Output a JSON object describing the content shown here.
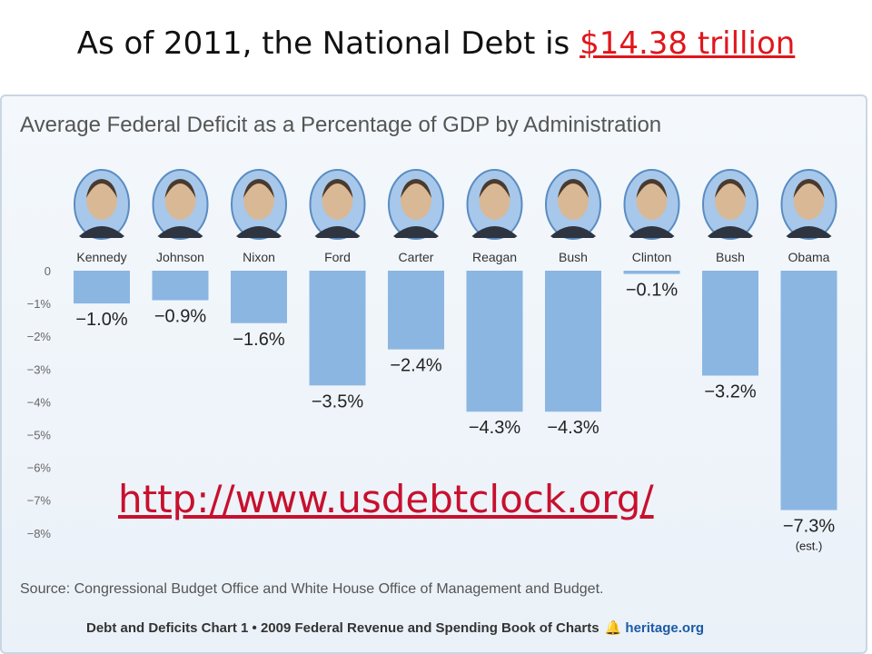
{
  "slide": {
    "title_prefix": "As of 2011, the National Debt is ",
    "title_link": "$14.38 trillion",
    "url": "http://www.usdebtclock.org/"
  },
  "chart_data": {
    "type": "bar",
    "title": "Average Federal Deficit as a Percentage of GDP by Administration",
    "categories": [
      "Kennedy",
      "Johnson",
      "Nixon",
      "Ford",
      "Carter",
      "Reagan",
      "Bush",
      "Clinton",
      "Bush",
      "Obama"
    ],
    "values": [
      -1.0,
      -0.9,
      -1.6,
      -3.5,
      -2.4,
      -4.3,
      -4.3,
      -0.1,
      -3.2,
      -7.3
    ],
    "value_labels": [
      "−1.0%",
      "−0.9%",
      "−1.6%",
      "−3.5%",
      "−2.4%",
      "−4.3%",
      "−4.3%",
      "−0.1%",
      "−3.2%",
      "−7.3%"
    ],
    "annotations": {
      "Obama": "(est.)"
    },
    "y_ticks": [
      0,
      -1,
      -2,
      -3,
      -4,
      -5,
      -6,
      -7,
      -8
    ],
    "y_tick_labels": [
      "0",
      "−1%",
      "−2%",
      "−3%",
      "−4%",
      "−5%",
      "−6%",
      "−7%",
      "−8%"
    ],
    "ylim": [
      -8,
      0
    ],
    "grid": false,
    "bar_color": "#8bb6e2"
  },
  "source": "Source: Congressional Budget Office and White House Office of Management and Budget.",
  "footer": {
    "text": "Debt and Deficits Chart 1 • 2009 Federal Revenue and Spending Book of Charts",
    "org": "heritage.org"
  }
}
